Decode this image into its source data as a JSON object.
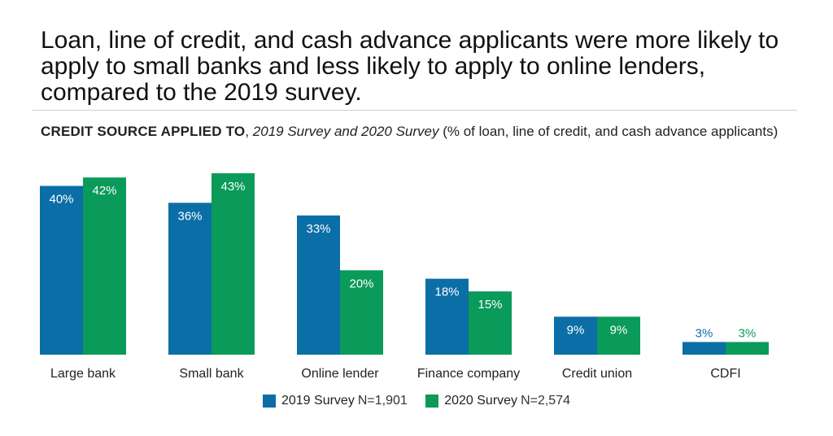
{
  "headline": "Loan, line of credit, and cash advance applicants were more likely to apply to small banks and less likely to apply to online lenders, compared to the 2019 survey.",
  "subtitle": {
    "bold": "CREDIT SOURCE APPLIED TO",
    "sep": ", ",
    "italic": "2019 Survey and 2020 Survey",
    "rest": " (% of loan, line of credit, and cash advance applicants)"
  },
  "colors": {
    "s2019": "#0c6ea6",
    "s2020": "#0a9a5a"
  },
  "legend": [
    {
      "name": "2019 Survey",
      "n": "N=1,901"
    },
    {
      "name": "2020 Survey",
      "n": "N=2,574"
    }
  ],
  "chart_data": {
    "type": "bar",
    "categories": [
      "Large bank",
      "Small bank",
      "Online lender",
      "Finance company",
      "Credit union",
      "CDFI"
    ],
    "series": [
      {
        "name": "2019 Survey",
        "values": [
          40,
          36,
          33,
          18,
          9,
          3
        ],
        "labels": [
          "40%",
          "36%",
          "33%",
          "18%",
          "9%",
          "3%"
        ]
      },
      {
        "name": "2020 Survey",
        "values": [
          42,
          43,
          20,
          15,
          9,
          3
        ],
        "labels": [
          "42%",
          "43%",
          "20%",
          "15%",
          "9%",
          "3%"
        ]
      }
    ],
    "ylim": [
      0,
      43
    ],
    "grid": false,
    "legend_position": "bottom"
  }
}
